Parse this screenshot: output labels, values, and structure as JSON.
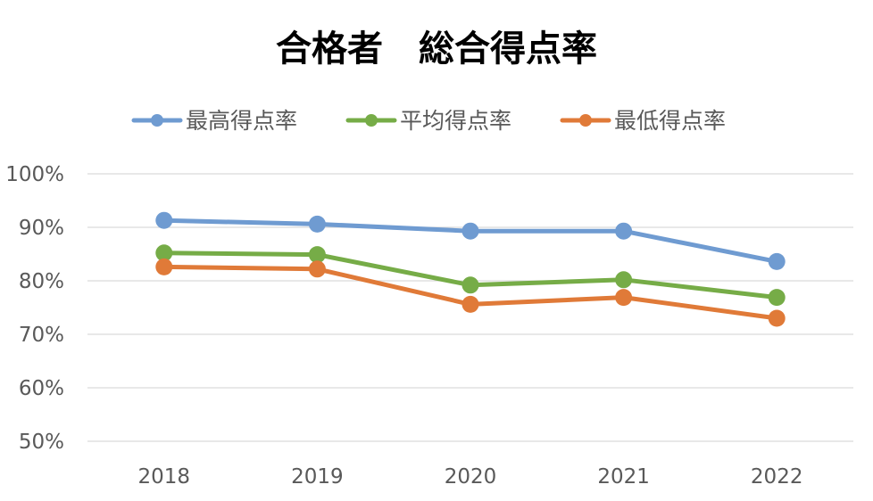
{
  "chart_data": {
    "type": "line",
    "title": "合格者　総合得点率",
    "categories": [
      "2018",
      "2019",
      "2020",
      "2021",
      "2022"
    ],
    "series": [
      {
        "name": "最高得点率",
        "color": "#6f9bd1",
        "values": [
          91.3,
          90.6,
          89.3,
          89.3,
          83.6
        ]
      },
      {
        "name": "平均得点率",
        "color": "#76ac47",
        "values": [
          85.2,
          84.9,
          79.2,
          80.2,
          76.9
        ]
      },
      {
        "name": "最低得点率",
        "color": "#e07a38",
        "values": [
          82.6,
          82.2,
          75.6,
          76.9,
          73.0
        ]
      }
    ],
    "ylim": [
      50,
      100
    ],
    "yticks": [
      "50%",
      "60%",
      "70%",
      "80%",
      "90%",
      "100%"
    ],
    "ytick_values": [
      50,
      60,
      70,
      80,
      90,
      100
    ],
    "grid": true,
    "legend_position": "top"
  }
}
